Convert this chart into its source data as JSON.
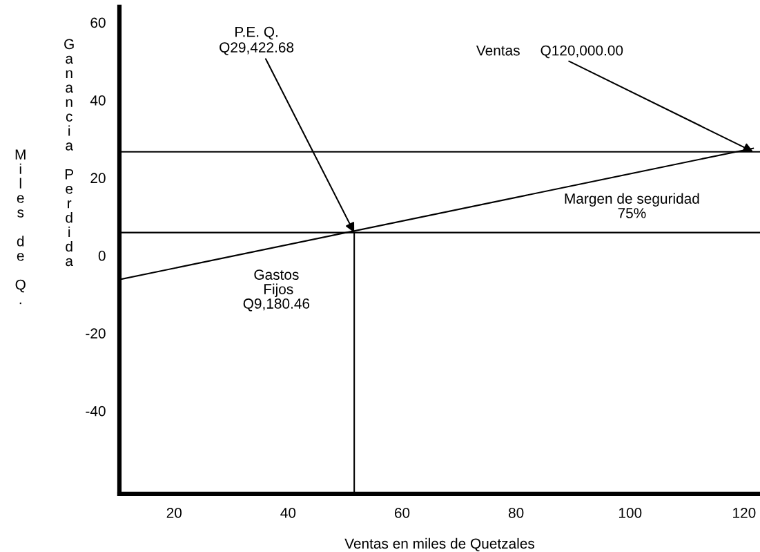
{
  "chart_data": {
    "type": "line",
    "xlabel": "Ventas en miles de Quetzales",
    "ylabel": "Miles de Q.",
    "xlim": [
      10.4,
      122.8
    ],
    "ylim": [
      -61.4,
      64
    ],
    "xticks": [
      20,
      40,
      60,
      80,
      100,
      120
    ],
    "yticks": [
      60,
      40,
      20,
      0,
      -20,
      -40
    ],
    "series": [
      {
        "color": "#000000",
        "x": [
          10.4,
          121.6
        ],
        "values": [
          -6.2,
          27.6
        ]
      },
      {
        "color": "#000000",
        "x": [
          51.6,
          51.6
        ],
        "values": [
          -61.4,
          5.9
        ]
      }
    ],
    "ref_lines": [
      {
        "axis": "y",
        "value": 26.7,
        "color": "#000000"
      },
      {
        "axis": "y",
        "value": 5.9,
        "color": "#000000"
      }
    ],
    "annotations": [
      {
        "text": "P.E. Q.\nQ29,422.68",
        "x": 51.6,
        "y": 5.9
      },
      {
        "text": "Ventas     Q120,000.00",
        "x": 121.6,
        "y": 26.7
      },
      "Gastos\n Fijos\nQ9,180.46",
      "Margen de seguridad\n75%",
      "Ganancia Perdida"
    ],
    "grid": false,
    "legend": false,
    "marker": "none",
    "line_style": "solid"
  }
}
